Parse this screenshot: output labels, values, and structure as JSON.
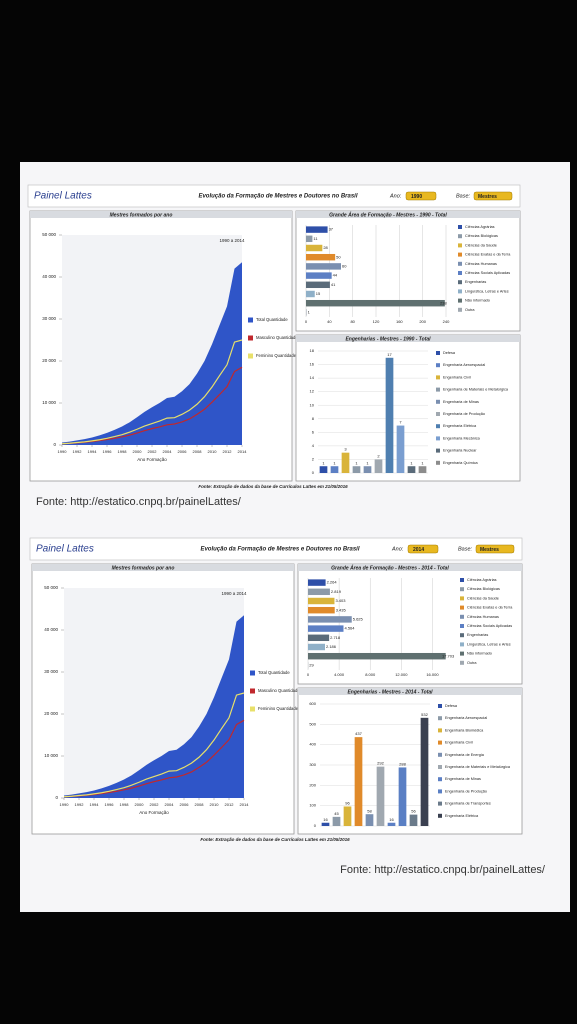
{
  "panels": [
    {
      "brand": "Painel Lattes",
      "title": "Evolução da Formação de Mestres e Doutores no Brasil",
      "ano_label": "Ano:",
      "ano_value": "1990",
      "base_label": "Base:",
      "base_value": "Mestres",
      "footnote": "Fonte: Extração de dados da base de Currículos Lattes em 21/05/2016",
      "source": "Fonte: http://estatico.cnpq.br/painelLattes/"
    },
    {
      "brand": "Painel Lattes",
      "title": "Evolução da Formação de Mestres e Doutores no Brasil",
      "ano_label": "Ano:",
      "ano_value": "2014",
      "base_label": "Base:",
      "base_value": "Mestres",
      "footnote": "Fonte: Extração de dados da base de Currículos Lattes em 21/05/2016",
      "source": "Fonte: http://estatico.cnpq.br/painelLattes/"
    }
  ],
  "chart_data": [
    {
      "type": "area",
      "title": "Mestres formados por ano",
      "annotation": "1990 a 2014",
      "xlabel": "Ano Formação",
      "x": [
        1990,
        1991,
        1992,
        1993,
        1994,
        1995,
        1996,
        1997,
        1998,
        1999,
        2000,
        2001,
        2002,
        2003,
        2004,
        2005,
        2006,
        2007,
        2008,
        2009,
        2010,
        2011,
        2012,
        2013,
        2014
      ],
      "xlim": [
        1990,
        2014
      ],
      "xticks": [
        1990,
        1992,
        1994,
        1996,
        1998,
        2000,
        2002,
        2004,
        2006,
        2008,
        2010,
        2012,
        2014
      ],
      "ylim": [
        0,
        50000
      ],
      "yticks": [
        0,
        {
          "value": 10000,
          "label": "10 000"
        },
        {
          "value": 20000,
          "label": "20 000"
        },
        {
          "value": 30000,
          "label": "30 000"
        },
        {
          "value": 40000,
          "label": "40 000"
        },
        {
          "value": 50000,
          "label": "50 000"
        }
      ],
      "series": [
        {
          "name": "Total Quantidade",
          "color": "#2f55c8",
          "style": "area",
          "values": [
            600,
            800,
            1100,
            1400,
            1800,
            2300,
            2900,
            3600,
            4400,
            5400,
            6600,
            7900,
            9000,
            10000,
            11200,
            11500,
            12800,
            14500,
            17000,
            20000,
            24000,
            28500,
            33000,
            42000,
            43500
          ]
        },
        {
          "name": "Masculino Quantidade",
          "color": "#c0282d",
          "style": "line",
          "values": [
            300,
            380,
            500,
            650,
            820,
            1050,
            1300,
            1600,
            1950,
            2350,
            2850,
            3400,
            3900,
            4300,
            4800,
            5000,
            5500,
            6200,
            7300,
            8500,
            10200,
            12000,
            13900,
            17500,
            18500
          ]
        },
        {
          "name": "Feminino Quantidade",
          "color": "#e8e06a",
          "style": "line",
          "values": [
            300,
            420,
            600,
            750,
            980,
            1250,
            1600,
            2000,
            2450,
            3050,
            3750,
            4500,
            5100,
            5700,
            6400,
            6500,
            7300,
            8300,
            9700,
            11500,
            13800,
            16500,
            19100,
            24500,
            25000
          ]
        }
      ]
    },
    {
      "type": "hbar",
      "title": "Grande Área de Formação - Mestres - 1990 - Total",
      "categories": [
        "Ciências Agrárias",
        "Ciências Biológicas",
        "Ciências da Saúde",
        "Ciências Exatas e da Terra",
        "Ciências Humanas",
        "Ciências Sociais Aplicadas",
        "Engenharias",
        "Linguística, Letras e Artes",
        "Não informado",
        "Outra"
      ],
      "values": [
        37,
        11,
        28,
        50,
        60,
        44,
        41,
        15,
        238,
        1
      ],
      "colors": [
        "#2e4fa8",
        "#8c9aa8",
        "#d9b43a",
        "#e08a2a",
        "#7a8fb0",
        "#5c7fc4",
        "#5a6b7a",
        "#8fb0c8",
        "#5f7070",
        "#a0a8b0"
      ],
      "xlim": [
        0,
        240
      ],
      "xticks": [
        0,
        40,
        80,
        120,
        160,
        200,
        240
      ],
      "grid": true
    },
    {
      "type": "vbar",
      "title": "Engenharias - Mestres - 1990 - Total",
      "categories": [
        "Defesa",
        "Engenharia Aeroespacial",
        "Engenharia Civil",
        "Engenharia de Materiais e Metalúrgica",
        "Engenharia de Minas",
        "Engenharia de Produção",
        "Engenharia Elétrica",
        "Engenharia Mecânica",
        "Engenharia Nuclear",
        "Engenharia Química"
      ],
      "values": [
        1,
        1,
        3,
        1,
        1,
        2,
        17,
        7,
        1,
        1
      ],
      "colors": [
        "#2e4fa8",
        "#5c7fc4",
        "#d9b43a",
        "#8c9aa8",
        "#7a8fb0",
        "#a0a8b0",
        "#4f7fb0",
        "#7a9ed0",
        "#5a6b7a",
        "#8c8c8c"
      ],
      "ylim": [
        0,
        18
      ],
      "yticks": [
        0,
        2,
        4,
        6,
        8,
        10,
        12,
        14,
        16,
        18
      ],
      "grid": true
    },
    {
      "type": "area",
      "title": "Mestres formados por ano",
      "annotation": "1990 a 2014",
      "xlabel": "Ano Formação",
      "x": [
        1990,
        1991,
        1992,
        1993,
        1994,
        1995,
        1996,
        1997,
        1998,
        1999,
        2000,
        2001,
        2002,
        2003,
        2004,
        2005,
        2006,
        2007,
        2008,
        2009,
        2010,
        2011,
        2012,
        2013,
        2014
      ],
      "xlim": [
        1990,
        2014
      ],
      "xticks": [
        1990,
        1992,
        1994,
        1996,
        1998,
        2000,
        2002,
        2004,
        2006,
        2008,
        2010,
        2012,
        2014
      ],
      "ylim": [
        0,
        50000
      ],
      "yticks": [
        0,
        {
          "value": 10000,
          "label": "10 000"
        },
        {
          "value": 20000,
          "label": "20 000"
        },
        {
          "value": 30000,
          "label": "30 000"
        },
        {
          "value": 40000,
          "label": "40 000"
        },
        {
          "value": 50000,
          "label": "50 000"
        }
      ],
      "series": [
        {
          "name": "Total Quantidade",
          "color": "#2f55c8",
          "style": "area",
          "values": [
            600,
            800,
            1100,
            1400,
            1800,
            2300,
            2900,
            3600,
            4400,
            5400,
            6600,
            7900,
            9000,
            10000,
            11200,
            11500,
            12800,
            14500,
            17000,
            20000,
            24000,
            28500,
            33000,
            42000,
            43500
          ]
        },
        {
          "name": "Masculino Quantidade",
          "color": "#c0282d",
          "style": "line",
          "values": [
            300,
            380,
            500,
            650,
            820,
            1050,
            1300,
            1600,
            1950,
            2350,
            2850,
            3400,
            3900,
            4300,
            4800,
            5000,
            5500,
            6200,
            7300,
            8500,
            10200,
            12000,
            13900,
            17500,
            18500
          ]
        },
        {
          "name": "Feminino Quantidade",
          "color": "#e8e06a",
          "style": "line",
          "values": [
            300,
            420,
            600,
            750,
            980,
            1250,
            1600,
            2000,
            2450,
            3050,
            3750,
            4500,
            5100,
            5700,
            6400,
            6500,
            7300,
            8300,
            9700,
            11500,
            13800,
            16500,
            19100,
            24500,
            25000
          ]
        }
      ]
    },
    {
      "type": "hbar",
      "title": "Grande Área de Formação - Mestres - 2014 - Total",
      "categories": [
        "Ciências Agrárias",
        "Ciências Biológicas",
        "Ciências da Saúde",
        "Ciências Exatas e da Terra",
        "Ciências Humanas",
        "Ciências Sociais Aplicadas",
        "Engenharias",
        "Linguística, Letras e Artes",
        "Não informado",
        "Outra"
      ],
      "values": [
        2264,
        2819,
        3403,
        3435,
        5625,
        4564,
        2718,
        2186,
        17703,
        29
      ],
      "value_labels": [
        "2.264",
        "2.819",
        "3.403",
        "3.435",
        "5.625",
        "4.564",
        "2.718",
        "2.186",
        "17.703",
        "29"
      ],
      "colors": [
        "#2e4fa8",
        "#8c9aa8",
        "#d9b43a",
        "#e08a2a",
        "#7a8fb0",
        "#5c7fc4",
        "#5a6b7a",
        "#8fb0c8",
        "#5f7070",
        "#a0a8b0"
      ],
      "xlim": [
        0,
        18000
      ],
      "xticks": [
        0,
        {
          "value": 4000,
          "label": "4.000"
        },
        {
          "value": 8000,
          "label": "8.000"
        },
        {
          "value": 12000,
          "label": "12.000"
        },
        {
          "value": 16000,
          "label": "16.000"
        }
      ],
      "grid": true
    },
    {
      "type": "vbar",
      "title": "Engenharias - Mestres - 2014 - Total",
      "categories": [
        "Defesa",
        "Engenharia Aeroespacial",
        "Engenharia Biomédica",
        "Engenharia Civil",
        "Engenharia de Energia",
        "Engenharia de Materiais e Metalúrgica",
        "Engenharia de Minas",
        "Engenharia de Produção",
        "Engenharia de Transportes",
        "Engenharia Elétrica"
      ],
      "values": [
        16,
        45,
        96,
        437,
        58,
        292,
        16,
        288,
        56,
        532
      ],
      "colors": [
        "#2e4fa8",
        "#8c9aa8",
        "#d9b43a",
        "#e08a2a",
        "#7a8fb0",
        "#a0a8b0",
        "#5c7fc4",
        "#5a7fc4",
        "#6a7a8a",
        "#3a4050"
      ],
      "ylim": [
        0,
        600
      ],
      "yticks": [
        0,
        100,
        200,
        300,
        400,
        500,
        600
      ],
      "grid": true
    }
  ]
}
